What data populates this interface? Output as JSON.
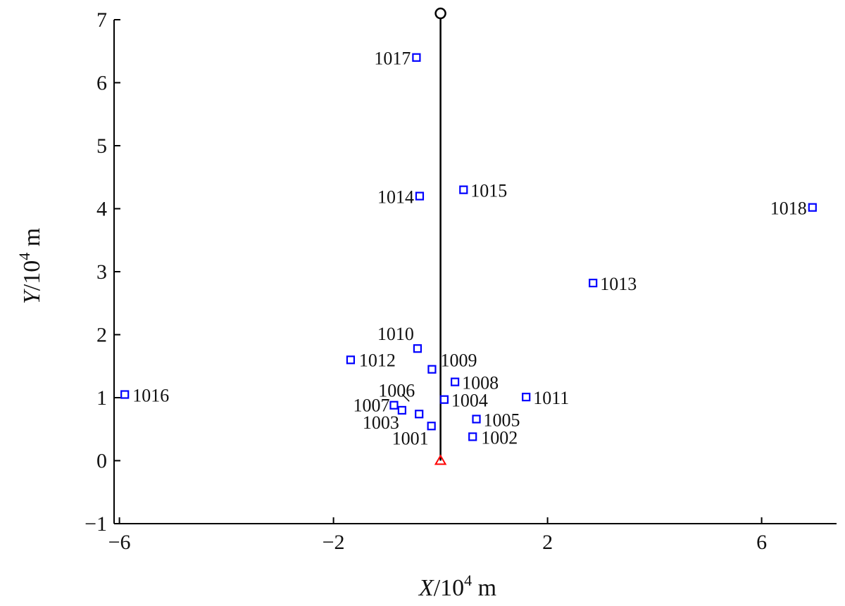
{
  "chart_data": {
    "type": "scatter",
    "xlabel": {
      "var": "X",
      "sep": "/",
      "base": "10",
      "exp": "4",
      "unit": " m"
    },
    "ylabel": {
      "var": "Y",
      "sep": "/",
      "base": "10",
      "exp": "4",
      "unit": " m"
    },
    "xlim": [
      -6.1,
      7.4
    ],
    "ylim": [
      -1.0,
      7.0
    ],
    "xticks": [
      -6,
      -2,
      2,
      6
    ],
    "yticks": [
      -1,
      0,
      1,
      2,
      3,
      4,
      5,
      6,
      7
    ],
    "grid": false,
    "points": [
      {
        "label": "1001",
        "x": -0.17,
        "y": 0.55
      },
      {
        "label": "1002",
        "x": 0.6,
        "y": 0.38
      },
      {
        "label": "1003",
        "x": -0.72,
        "y": 0.8
      },
      {
        "label": "1004",
        "x": 0.07,
        "y": 0.97
      },
      {
        "label": "1005",
        "x": 0.67,
        "y": 0.66
      },
      {
        "label": "1006",
        "x": -0.4,
        "y": 0.74
      },
      {
        "label": "1007",
        "x": -0.87,
        "y": 0.88
      },
      {
        "label": "1008",
        "x": 0.27,
        "y": 1.25
      },
      {
        "label": "1009",
        "x": -0.16,
        "y": 1.45
      },
      {
        "label": "1010",
        "x": -0.43,
        "y": 1.78
      },
      {
        "label": "1011",
        "x": 1.6,
        "y": 1.01
      },
      {
        "label": "1012",
        "x": -1.68,
        "y": 1.6
      },
      {
        "label": "1013",
        "x": 2.85,
        "y": 2.82
      },
      {
        "label": "1014",
        "x": -0.39,
        "y": 4.2
      },
      {
        "label": "1015",
        "x": 0.43,
        "y": 4.3
      },
      {
        "label": "1016",
        "x": -5.9,
        "y": 1.05
      },
      {
        "label": "1017",
        "x": -0.45,
        "y": 6.4
      },
      {
        "label": "1018",
        "x": 6.95,
        "y": 4.02
      }
    ],
    "vertical_line": {
      "x": 0,
      "y0": 0,
      "y1": 7.1
    },
    "top_marker": {
      "x": 0,
      "y": 7.1,
      "shape": "circle"
    },
    "origin_marker": {
      "x": 0,
      "y": 0,
      "shape": "triangle"
    },
    "colors": {
      "points": "#0000ff",
      "line": "#000000",
      "origin": "#ff0000",
      "axis": "#000000"
    }
  }
}
